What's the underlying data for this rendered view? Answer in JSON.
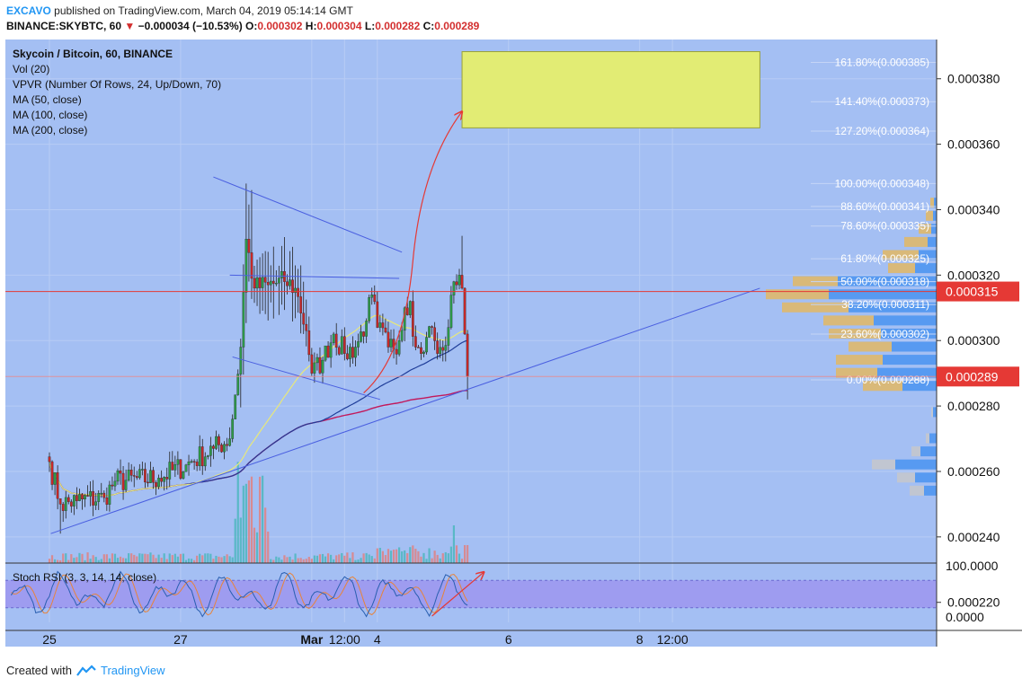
{
  "header": {
    "author": "EXCAVO",
    "published": "published on TradingView.com, March 04, 2019 05:14:14 GMT",
    "symbol": "BINANCE:SKYBTC, 60",
    "change": "−0.000034 (−10.53%)",
    "o_label": "O:",
    "o_value": "0.000302",
    "h_label": "H:",
    "h_value": "0.000304",
    "l_label": "L:",
    "l_value": "0.000282",
    "c_label": "C:",
    "c_value": "0.000289"
  },
  "legend": [
    "Skycoin / Bitcoin, 60, BINANCE",
    "Vol (20)",
    "VPVR (Number Of Rows, 24, Up/Down, 70)",
    "MA (50, close)",
    "MA (100, close)",
    "MA (200, close)"
  ],
  "footer": {
    "created_with": "Created with",
    "brand": "TradingView"
  },
  "colors": {
    "background": "#a4bff3",
    "bull": "#2e9b4a",
    "bear": "#c62828",
    "ma50": "#e8e87a",
    "ma100": "#1f3d99",
    "ma200": "#c2185b",
    "trendline": "#4a5fe0",
    "price_line": "#e53935",
    "target_box": "#e2ec74"
  },
  "chart_data": [
    {
      "type": "candlestick",
      "title": "Skycoin / Bitcoin, 60, BINANCE",
      "ylim": [
        0.000232,
        0.000392
      ],
      "y_ticks": [
        "0.000380",
        "0.000360",
        "0.000340",
        "0.000320",
        "0.000300",
        "0.000280",
        "0.000260",
        "0.000240",
        "0.000220"
      ],
      "y_tick_values": [
        0.00038,
        0.00036,
        0.00034,
        0.00032,
        0.0003,
        0.00028,
        0.00026,
        0.00024,
        0.00022
      ],
      "x_ticks": [
        "25",
        "27",
        "Mar",
        "12:00",
        "4",
        "6",
        "8",
        "12:00"
      ],
      "x_tick_hours": [
        0,
        48,
        96,
        108,
        120,
        168,
        216,
        228
      ],
      "grid": true,
      "price_labels": [
        {
          "text": "0.000315",
          "value": 0.000315
        },
        {
          "text": "0.000289",
          "value": 0.000289
        }
      ],
      "fib_levels": [
        {
          "label": "161.80%(0.000385)",
          "value": 0.000385
        },
        {
          "label": "141.40%(0.000373)",
          "value": 0.000373
        },
        {
          "label": "127.20%(0.000364)",
          "value": 0.000364
        },
        {
          "label": "100.00%(0.000348)",
          "value": 0.000348
        },
        {
          "label": "88.60%(0.000341)",
          "value": 0.000341
        },
        {
          "label": "78.60%(0.000335)",
          "value": 0.000335
        },
        {
          "label": "61.80%(0.000325)",
          "value": 0.000325
        },
        {
          "label": "50.00%(0.000318)",
          "value": 0.000318
        },
        {
          "label": "38.20%(0.000311)",
          "value": 0.000311
        },
        {
          "label": "23.60%(0.000302)",
          "value": 0.000302
        },
        {
          "label": "0.00%(0.000288)",
          "value": 0.000288
        }
      ],
      "target_zone": {
        "from_hour": 151,
        "to_hour": 260,
        "low": 0.000365,
        "high": 0.000385
      },
      "trendlines": [
        {
          "kind": "ascending-support",
          "from": [
            0.5,
            0.000241
          ],
          "to": [
            260,
            0.000316
          ]
        },
        {
          "kind": "descending-resistance",
          "from": [
            60,
            0.00035
          ],
          "to": [
            129,
            0.000327
          ]
        },
        {
          "kind": "horizontal",
          "from": [
            66,
            0.00032
          ],
          "to": [
            128,
            0.000319
          ]
        },
        {
          "kind": "lower-channel",
          "from": [
            67,
            0.000295
          ],
          "to": [
            121,
            0.000282
          ]
        }
      ],
      "projection": {
        "from": [
          115,
          0.000284
        ],
        "to": [
          151,
          0.00037
        ]
      },
      "candles_ohlc_description": "hourly candles from Feb 24 to Mar 4 05:00",
      "ohlc_anchors": [
        {
          "h": 0,
          "c": 0.000263
        },
        {
          "h": 4,
          "c": 0.00025
        },
        {
          "h": 10,
          "c": 0.000251
        },
        {
          "h": 20,
          "c": 0.000252
        },
        {
          "h": 24,
          "c": 0.000257
        },
        {
          "h": 40,
          "c": 0.000258
        },
        {
          "h": 50,
          "c": 0.000262
        },
        {
          "h": 60,
          "c": 0.000267
        },
        {
          "h": 66,
          "c": 0.00027
        },
        {
          "h": 70,
          "c": 0.000298
        },
        {
          "h": 72,
          "c": 0.000331
        },
        {
          "h": 75,
          "c": 0.000316
        },
        {
          "h": 80,
          "c": 0.000317
        },
        {
          "h": 86,
          "c": 0.000318
        },
        {
          "h": 90,
          "c": 0.000316
        },
        {
          "h": 94,
          "c": 0.000303
        },
        {
          "h": 96,
          "c": 0.00029
        },
        {
          "h": 100,
          "c": 0.000294
        },
        {
          "h": 104,
          "c": 0.000302
        },
        {
          "h": 108,
          "c": 0.000296
        },
        {
          "h": 112,
          "c": 0.000298
        },
        {
          "h": 116,
          "c": 0.000306
        },
        {
          "h": 118,
          "c": 0.000314
        },
        {
          "h": 120,
          "c": 0.000304
        },
        {
          "h": 124,
          "c": 0.000298
        },
        {
          "h": 128,
          "c": 0.0003
        },
        {
          "h": 130,
          "c": 0.00031
        },
        {
          "h": 132,
          "c": 0.000312
        },
        {
          "h": 134,
          "c": 0.000298
        },
        {
          "h": 136,
          "c": 0.000296
        },
        {
          "h": 138,
          "c": 0.000301
        },
        {
          "h": 140,
          "c": 0.000304
        },
        {
          "h": 142,
          "c": 0.000296
        },
        {
          "h": 144,
          "c": 0.000297
        },
        {
          "h": 146,
          "c": 0.000304
        },
        {
          "h": 148,
          "c": 0.000318
        },
        {
          "h": 150,
          "c": 0.00032
        },
        {
          "h": 151,
          "c": 0.000316
        },
        {
          "h": 152,
          "c": 0.000302
        },
        {
          "h": 153,
          "c": 0.000289
        }
      ]
    },
    {
      "type": "bar",
      "title": "Vol (20)",
      "description": "volume bars per hourly candle with spike around Mar 1"
    },
    {
      "type": "line",
      "title": "Stoch RSI (3, 3, 14, 14, close)",
      "ylim": [
        0,
        100
      ],
      "y_ticks": [
        "100.0000",
        "0.0000"
      ],
      "y_tick_values": [
        100,
        0
      ],
      "band": [
        20,
        80
      ]
    }
  ]
}
